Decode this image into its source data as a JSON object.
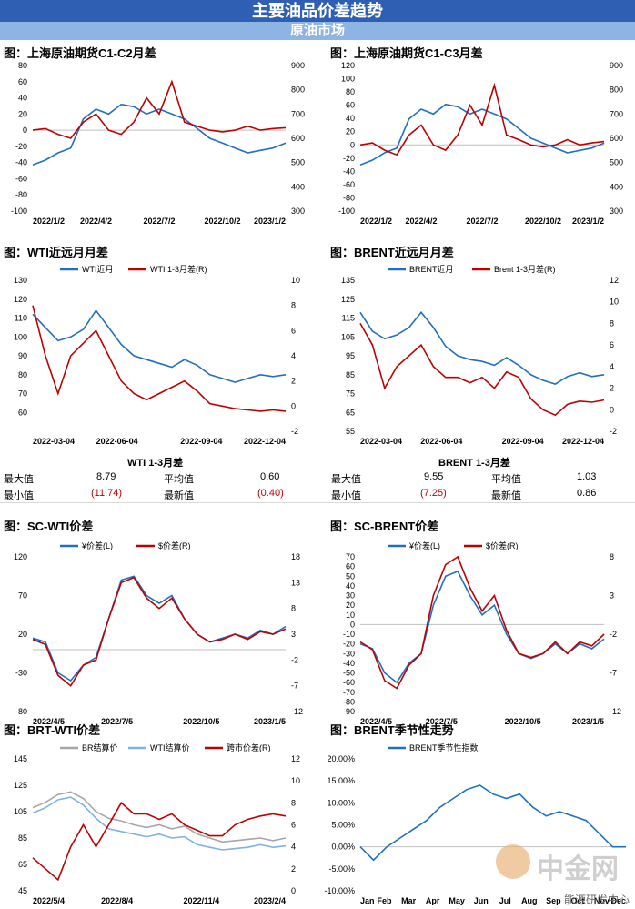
{
  "header": {
    "title": "主要油品价差趋势",
    "section": "原油市场"
  },
  "watermark": {
    "logo_text": "中金网",
    "source": "能源研发中心"
  },
  "colors": {
    "blue": "#1f6fc4",
    "red": "#c00000",
    "grey": "#a6a6a6",
    "lightblue": "#7fb2e5"
  },
  "panels": {
    "p1": {
      "title": "图：上海原油期货C1-C2月差"
    },
    "p2": {
      "title": "图：上海原油期货C1-C3月差"
    },
    "p3": {
      "title": "图：WTI近远月月差"
    },
    "p4": {
      "title": "图：BRENT近远月月差"
    },
    "p5": {
      "title": "图：SC-WTI价差"
    },
    "p6": {
      "title": "图：SC-BRENT价差"
    },
    "p7": {
      "title": "图：BRT-WTI价差"
    },
    "p8": {
      "title": "图：BRENT季节性走势"
    }
  },
  "stats": {
    "wti": {
      "title": "WTI 1-3月差",
      "max_label": "最大值",
      "max": "8.79",
      "avg_label": "平均值",
      "avg": "0.60",
      "min_label": "最小值",
      "min": "(11.74)",
      "latest_label": "最新值",
      "latest": "(0.40)"
    },
    "brent": {
      "title": "BRENT 1-3月差",
      "max_label": "最大值",
      "max": "9.55",
      "avg_label": "平均值",
      "avg": "1.03",
      "min_label": "最小值",
      "min": "(7.25)",
      "latest_label": "最新值",
      "latest": "0.86"
    }
  },
  "chart_data": [
    {
      "id": "p1",
      "type": "line",
      "ylim": [
        -100,
        80
      ],
      "yticks": [
        -100,
        -80,
        -60,
        -40,
        -20,
        0,
        20,
        40,
        60,
        80
      ],
      "y2lim": [
        300,
        900
      ],
      "y2ticks": [
        300,
        400,
        500,
        600,
        700,
        800,
        900
      ],
      "xticks": [
        "2022/1/2",
        "2022/4/2",
        "2022/7/2",
        "2022/10/2",
        "2023/1/2"
      ],
      "x": [
        0,
        0.05,
        0.1,
        0.15,
        0.2,
        0.25,
        0.3,
        0.35,
        0.4,
        0.45,
        0.5,
        0.55,
        0.6,
        0.65,
        0.7,
        0.75,
        0.8,
        0.85,
        0.9,
        0.95,
        1.0
      ],
      "series": [
        {
          "axis": "right",
          "color": "#1f6fc4",
          "values": [
            490,
            510,
            540,
            560,
            680,
            720,
            700,
            740,
            730,
            700,
            720,
            700,
            680,
            640,
            600,
            580,
            560,
            540,
            550,
            560,
            580
          ]
        },
        {
          "axis": "left",
          "color": "#c00000",
          "values": [
            0,
            2,
            -5,
            -10,
            10,
            20,
            0,
            -5,
            10,
            40,
            20,
            60,
            10,
            5,
            0,
            -2,
            0,
            5,
            0,
            2,
            3
          ]
        }
      ]
    },
    {
      "id": "p2",
      "type": "line",
      "ylim": [
        -100,
        120
      ],
      "yticks": [
        -100,
        -80,
        -60,
        -40,
        -20,
        0,
        20,
        40,
        60,
        80,
        100,
        120
      ],
      "y2lim": [
        300,
        900
      ],
      "y2ticks": [
        300,
        400,
        500,
        600,
        700,
        800,
        900
      ],
      "xticks": [
        "2022/1/2",
        "2022/4/2",
        "2022/7/2",
        "2022/10/2",
        "2023/1/2"
      ],
      "x": [
        0,
        0.05,
        0.1,
        0.15,
        0.2,
        0.25,
        0.3,
        0.35,
        0.4,
        0.45,
        0.5,
        0.55,
        0.6,
        0.65,
        0.7,
        0.75,
        0.8,
        0.85,
        0.9,
        0.95,
        1.0
      ],
      "series": [
        {
          "axis": "right",
          "color": "#1f6fc4",
          "values": [
            490,
            510,
            540,
            560,
            680,
            720,
            700,
            740,
            730,
            700,
            720,
            700,
            680,
            640,
            600,
            580,
            560,
            540,
            550,
            560,
            580
          ]
        },
        {
          "axis": "left",
          "color": "#c00000",
          "values": [
            0,
            3,
            -8,
            -15,
            15,
            30,
            0,
            -8,
            15,
            60,
            30,
            90,
            15,
            8,
            0,
            -3,
            0,
            8,
            0,
            3,
            5
          ]
        }
      ]
    },
    {
      "id": "p3",
      "type": "line",
      "ylim": [
        50,
        130
      ],
      "yticks": [
        60,
        70,
        80,
        90,
        100,
        110,
        120,
        130
      ],
      "y2lim": [
        -2,
        10
      ],
      "y2ticks": [
        -2,
        0,
        2,
        4,
        6,
        8,
        10
      ],
      "xticks": [
        "2022-03-04",
        "2022-06-04",
        "2022-09-04",
        "2022-12-04"
      ],
      "legend": [
        "WTI近月",
        "WTI 1-3月差(R)"
      ],
      "x": [
        0,
        0.05,
        0.1,
        0.15,
        0.2,
        0.25,
        0.3,
        0.35,
        0.4,
        0.45,
        0.5,
        0.55,
        0.6,
        0.65,
        0.7,
        0.75,
        0.8,
        0.85,
        0.9,
        0.95,
        1.0
      ],
      "series": [
        {
          "name": "WTI近月",
          "axis": "left",
          "color": "#1f6fc4",
          "values": [
            112,
            105,
            98,
            100,
            104,
            114,
            105,
            96,
            90,
            88,
            86,
            84,
            88,
            85,
            80,
            78,
            76,
            78,
            80,
            79,
            80
          ]
        },
        {
          "name": "WTI 1-3月差(R)",
          "axis": "right",
          "color": "#c00000",
          "values": [
            8,
            4,
            1,
            4,
            5,
            6,
            4,
            2,
            1,
            0.5,
            1,
            1.5,
            2,
            1.2,
            0.2,
            0,
            -0.2,
            -0.3,
            -0.4,
            -0.3,
            -0.4
          ]
        }
      ]
    },
    {
      "id": "p4",
      "type": "line",
      "ylim": [
        55,
        135
      ],
      "yticks": [
        55,
        65,
        75,
        85,
        95,
        105,
        115,
        125,
        135
      ],
      "y2lim": [
        -2,
        12
      ],
      "y2ticks": [
        -2,
        0,
        2,
        4,
        6,
        8,
        10,
        12
      ],
      "xticks": [
        "2022-03-04",
        "2022-06-04",
        "2022-09-04",
        "2022-12-04"
      ],
      "legend": [
        "BRENT近月",
        "Brent 1-3月差(R)"
      ],
      "x": [
        0,
        0.05,
        0.1,
        0.15,
        0.2,
        0.25,
        0.3,
        0.35,
        0.4,
        0.45,
        0.5,
        0.55,
        0.6,
        0.65,
        0.7,
        0.75,
        0.8,
        0.85,
        0.9,
        0.95,
        1.0
      ],
      "series": [
        {
          "name": "BRENT近月",
          "axis": "left",
          "color": "#1f6fc4",
          "values": [
            118,
            108,
            104,
            106,
            110,
            118,
            110,
            100,
            95,
            93,
            92,
            90,
            94,
            90,
            85,
            82,
            80,
            84,
            86,
            84,
            85
          ]
        },
        {
          "name": "Brent 1-3月差(R)",
          "axis": "right",
          "color": "#c00000",
          "values": [
            8,
            6,
            2,
            4,
            5,
            6,
            4,
            3,
            3,
            2.5,
            3,
            2,
            3.5,
            3,
            1,
            0,
            -0.5,
            0.5,
            0.8,
            0.7,
            0.9
          ]
        }
      ]
    },
    {
      "id": "p5",
      "type": "line",
      "ylim": [
        -80,
        120
      ],
      "yticks": [
        -80,
        -30,
        20,
        70,
        120
      ],
      "y2lim": [
        -12,
        18
      ],
      "y2ticks": [
        -12,
        -7,
        -2,
        3,
        8,
        13,
        18
      ],
      "xticks": [
        "2022/4/5",
        "2022/7/5",
        "2022/10/5",
        "2023/1/5"
      ],
      "legend": [
        "¥价差(L)",
        "$价差(R)"
      ],
      "x": [
        0,
        0.05,
        0.1,
        0.15,
        0.2,
        0.25,
        0.3,
        0.35,
        0.4,
        0.45,
        0.5,
        0.55,
        0.6,
        0.65,
        0.7,
        0.75,
        0.8,
        0.85,
        0.9,
        0.95,
        1.0
      ],
      "series": [
        {
          "name": "¥价差(L)",
          "axis": "left",
          "color": "#1f6fc4",
          "values": [
            15,
            10,
            -30,
            -40,
            -20,
            -10,
            40,
            90,
            95,
            70,
            60,
            70,
            40,
            20,
            10,
            15,
            20,
            15,
            25,
            20,
            30
          ]
        },
        {
          "name": "$价差(R)",
          "axis": "right",
          "color": "#c00000",
          "values": [
            2,
            1,
            -5,
            -7,
            -3,
            -2,
            6,
            13,
            14,
            10,
            8,
            10,
            6,
            3,
            1.5,
            2,
            3,
            2,
            3.5,
            3,
            4
          ]
        }
      ]
    },
    {
      "id": "p6",
      "type": "line",
      "ylim": [
        -90,
        70
      ],
      "yticks": [
        -90,
        -80,
        -70,
        -60,
        -50,
        -40,
        -30,
        -20,
        -10,
        0,
        10,
        20,
        30,
        40,
        50,
        60,
        70
      ],
      "y2lim": [
        -12,
        8
      ],
      "y2ticks": [
        -12,
        -7,
        -2,
        3,
        8
      ],
      "xticks": [
        "2022/4/5",
        "2022/7/5",
        "2022/10/5",
        "2023/1/5"
      ],
      "legend": [
        "¥价差(L)",
        "$价差(R)"
      ],
      "x": [
        0,
        0.05,
        0.1,
        0.15,
        0.2,
        0.25,
        0.3,
        0.35,
        0.4,
        0.45,
        0.5,
        0.55,
        0.6,
        0.65,
        0.7,
        0.75,
        0.8,
        0.85,
        0.9,
        0.95,
        1.0
      ],
      "series": [
        {
          "name": "¥价差(L)",
          "axis": "left",
          "color": "#1f6fc4",
          "values": [
            -20,
            -25,
            -50,
            -60,
            -40,
            -30,
            20,
            50,
            55,
            30,
            10,
            20,
            -10,
            -30,
            -35,
            -30,
            -20,
            -30,
            -20,
            -25,
            -15
          ]
        },
        {
          "name": "$价差(R)",
          "axis": "right",
          "color": "#c00000",
          "values": [
            -3,
            -4,
            -8,
            -9,
            -6,
            -4.5,
            3,
            7,
            8,
            4,
            1,
            3,
            -1.5,
            -4.5,
            -5,
            -4.5,
            -3,
            -4.5,
            -3,
            -3.5,
            -2
          ]
        }
      ]
    },
    {
      "id": "p7",
      "type": "line",
      "ylim": [
        45,
        145
      ],
      "yticks": [
        45,
        65,
        85,
        105,
        125,
        145
      ],
      "y2lim": [
        0,
        12
      ],
      "y2ticks": [
        0,
        2,
        4,
        6,
        8,
        10,
        12
      ],
      "xticks": [
        "2022/5/4",
        "2022/8/4",
        "2022/11/4",
        "2023/2/4"
      ],
      "legend": [
        "BR结算价",
        "WTI结算价",
        "跨市价差(R)"
      ],
      "x": [
        0,
        0.05,
        0.1,
        0.15,
        0.2,
        0.25,
        0.3,
        0.35,
        0.4,
        0.45,
        0.5,
        0.55,
        0.6,
        0.65,
        0.7,
        0.75,
        0.8,
        0.85,
        0.9,
        0.95,
        1.0
      ],
      "series": [
        {
          "name": "BR结算价",
          "axis": "left",
          "color": "#a6a6a6",
          "values": [
            108,
            112,
            118,
            120,
            115,
            105,
            100,
            98,
            95,
            93,
            95,
            92,
            94,
            88,
            85,
            82,
            83,
            84,
            85,
            83,
            85
          ]
        },
        {
          "name": "WTI结算价",
          "axis": "left",
          "color": "#7fb2e5",
          "values": [
            104,
            108,
            114,
            116,
            110,
            100,
            92,
            90,
            88,
            86,
            88,
            85,
            86,
            80,
            78,
            76,
            77,
            78,
            80,
            78,
            79
          ]
        },
        {
          "name": "跨市价差(R)",
          "axis": "right",
          "color": "#c00000",
          "values": [
            3,
            2,
            1,
            4,
            6,
            4,
            6,
            8,
            7,
            7,
            6.5,
            7,
            6,
            5.5,
            5,
            5,
            6,
            6.5,
            6.8,
            7,
            6.8
          ]
        }
      ]
    },
    {
      "id": "p8",
      "type": "line",
      "ylim": [
        -10,
        20
      ],
      "yticks": [
        "-10.00%",
        "-5.00%",
        "0.00%",
        "5.00%",
        "10.00%",
        "15.00%",
        "20.00%"
      ],
      "xticks": [
        "Jan",
        "Feb",
        "Mar",
        "Apr",
        "May",
        "Jun",
        "Jul",
        "Aug",
        "Sep",
        "Oct",
        "Nov",
        "Dec"
      ],
      "legend": [
        "BRENT季节性指数"
      ],
      "x": [
        0,
        0.05,
        0.1,
        0.15,
        0.2,
        0.25,
        0.3,
        0.35,
        0.4,
        0.45,
        0.5,
        0.55,
        0.6,
        0.65,
        0.7,
        0.75,
        0.8,
        0.85,
        0.9,
        0.95,
        1.0
      ],
      "series": [
        {
          "name": "BRENT季节性指数",
          "axis": "left",
          "color": "#1f6fc4",
          "values": [
            0,
            -3,
            0,
            2,
            4,
            6,
            9,
            11,
            13,
            14,
            12,
            11,
            12,
            9,
            7,
            8,
            7,
            6,
            3,
            0,
            0
          ]
        }
      ]
    }
  ]
}
